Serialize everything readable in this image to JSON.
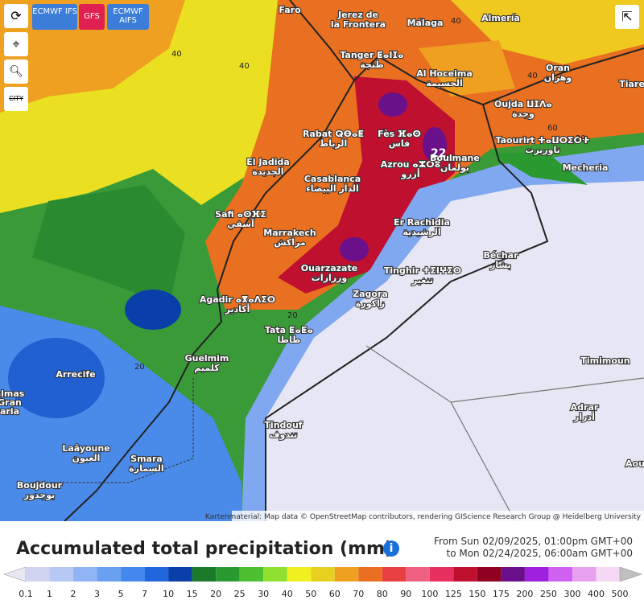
{
  "toolbar": {
    "models": [
      "ECMWF IFS",
      "GFS",
      "ECMWF AIFS"
    ],
    "city_toggle": "CITY"
  },
  "map": {
    "cities": [
      {
        "name": "Faro"
      },
      {
        "name": "Jerez de",
        "local": "la Frontera"
      },
      {
        "name": "Almería"
      },
      {
        "name": "Málaga"
      },
      {
        "name": "Tanger ⵟⴰⵏⵊⴰ",
        "local": "طنجة"
      },
      {
        "name": "Al Hoceima",
        "local": "الحسيمة"
      },
      {
        "name": "Oran",
        "local": "وهران"
      },
      {
        "name": "Tiare"
      },
      {
        "name": "Oujda ⵡⵊⴷⴰ",
        "local": "وجدة"
      },
      {
        "name": "Fès ⴼⴰⵙ",
        "local": "فاس"
      },
      {
        "name": "Rabat ⵕⴱⴰⵟ",
        "local": "الرباط"
      },
      {
        "name": "Taourirt ⵜⴰⵡⵔⵉⵔⵜ",
        "local": "تاوريرت"
      },
      {
        "name": "Mecheria"
      },
      {
        "name": "El Jadida",
        "local": "الجديدة"
      },
      {
        "name": "Azrou ⴰⵣⵔⵓ",
        "local": "أزرو"
      },
      {
        "name": "Boulmane",
        "local": "بولمان"
      },
      {
        "name": "Casablanca",
        "local": "الدار البيضاء"
      },
      {
        "name": "Safi ⴰⵙⴼⵉ",
        "local": "آسفي"
      },
      {
        "name": "Er Rachidia",
        "local": "الرشيدية"
      },
      {
        "name": "Marrakech",
        "local": "مراكش"
      },
      {
        "name": "Béchar",
        "local": "بشار"
      },
      {
        "name": "Ouarzazate",
        "local": "ورزازات"
      },
      {
        "name": "Tinghir ⵜⵉⵏⵖⵉⵔ",
        "local": "تنغير"
      },
      {
        "name": "Zagora",
        "local": "زاكورة"
      },
      {
        "name": "Agadir ⴰⴳⴰⴷⵉⵔ",
        "local": "أكادير"
      },
      {
        "name": "Tata ⵟⴰⵟⴰ",
        "local": "طاطا"
      },
      {
        "name": "Guelmim",
        "local": "كلميم"
      },
      {
        "name": "Timimoun"
      },
      {
        "name": "Arrecife"
      },
      {
        "name": "almas"
      },
      {
        "name": "Gran"
      },
      {
        "name": "aria"
      },
      {
        "name": "Adrar",
        "local": "أدرار"
      },
      {
        "name": "Tindouf",
        "local": "تندوف"
      },
      {
        "name": "Laâyoune",
        "local": "العيون"
      },
      {
        "name": "Smara",
        "local": "السمارة"
      },
      {
        "name": "Aou"
      },
      {
        "name": "Boujdour",
        "local": "بوجدور"
      }
    ],
    "contour_labels": [
      "40",
      "40",
      "40",
      "40",
      "60",
      "20",
      "20",
      "20",
      "22"
    ],
    "attribution": "Kartenmaterial: Map data © OpenStreetMap contributors, rendering GIScience Research Group @ Heidelberg University"
  },
  "footer": {
    "title": "Accumulated total precipitation (mm)",
    "from": "From Sun 02/09/2025, 01:00pm GMT+00",
    "to": "to Mon 02/24/2025, 06:00am GMT+00"
  },
  "legend": {
    "labels": [
      "0.1",
      "1",
      "2",
      "3",
      "5",
      "7",
      "10",
      "15",
      "20",
      "25",
      "30",
      "40",
      "50",
      "60",
      "70",
      "80",
      "90",
      "100",
      "125",
      "150",
      "175",
      "200",
      "250",
      "300",
      "400",
      "500"
    ],
    "colors": [
      "#e8e8f4",
      "#d0d4f0",
      "#b8c8f4",
      "#90b4f4",
      "#6aa0f0",
      "#4488ee",
      "#2266dd",
      "#0a3ea8",
      "#1a7a2a",
      "#2a9a30",
      "#4cc030",
      "#90e030",
      "#f0f020",
      "#e8d020",
      "#f0a020",
      "#e87020",
      "#e84040",
      "#f06080",
      "#e83060",
      "#c01030",
      "#900020",
      "#6a108a",
      "#a020e0",
      "#d060f0",
      "#e8a0f0",
      "#f4d8f4",
      "#c0c0c0"
    ]
  }
}
